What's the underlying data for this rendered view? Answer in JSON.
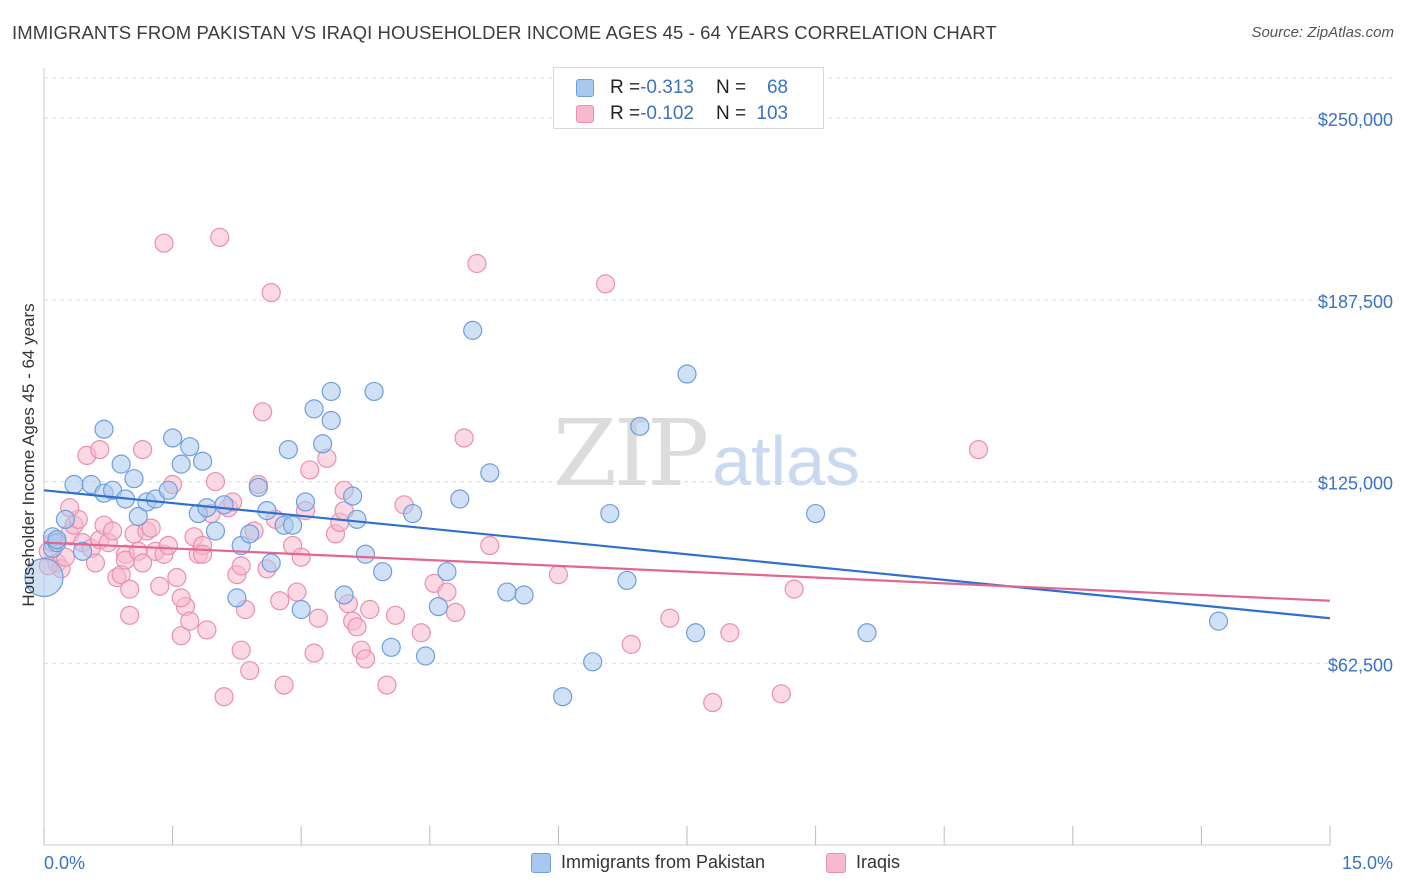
{
  "title": "IMMIGRANTS FROM PAKISTAN VS IRAQI HOUSEHOLDER INCOME AGES 45 - 64 YEARS CORRELATION CHART",
  "source": "Source: ZipAtlas.com",
  "watermark": {
    "zip": "ZIP",
    "atlas": "atlas"
  },
  "colors": {
    "pakistan_fill": "#a9c8ef",
    "pakistan_stroke": "#6d9fdc",
    "pakistan_line": "#2f6fce",
    "iraqi_fill": "#f6b9cd",
    "iraqi_stroke": "#ea8fae",
    "iraqi_line": "#e0678f",
    "axis_label": "#3a73c4",
    "grid": "#dcdcdc"
  },
  "legend_top": {
    "rows": [
      {
        "r_label": "R = ",
        "r_value": "-0.313",
        "n_label": "N = ",
        "n_value": "68"
      },
      {
        "r_label": "R = ",
        "r_value": "-0.102",
        "n_label": "N = ",
        "n_value": "103"
      }
    ]
  },
  "legend_bottom": [
    "Immigrants from Pakistan",
    "Iraqis"
  ],
  "chart_data": {
    "type": "scatter",
    "title": "IMMIGRANTS FROM PAKISTAN VS IRAQI HOUSEHOLDER INCOME AGES 45 - 64 YEARS CORRELATION CHART",
    "xlabel": "",
    "ylabel": "Householder Income Ages 45 - 64 years",
    "xlim": [
      0,
      15
    ],
    "ylim": [
      0,
      270000
    ],
    "x_tick_labels": [
      "0.0%",
      "15.0%"
    ],
    "y_ticks": [
      62500,
      125000,
      187500,
      250000
    ],
    "y_tick_labels": [
      "$62,500",
      "$125,000",
      "$187,500",
      "$250,000"
    ],
    "grid": true,
    "legend_placement": "top-center",
    "series": [
      {
        "name": "Immigrants from Pakistan",
        "r": -0.313,
        "n": 68,
        "trend": {
          "x0": 0,
          "y0": 122000,
          "x1": 15,
          "y1": 78000
        },
        "points": [
          [
            0.0,
            92000
          ],
          [
            0.1,
            102000
          ],
          [
            0.1,
            106000
          ],
          [
            0.15,
            104000
          ],
          [
            0.25,
            112000
          ],
          [
            0.35,
            124000
          ],
          [
            0.45,
            101000
          ],
          [
            0.55,
            124000
          ],
          [
            0.7,
            121000
          ],
          [
            0.7,
            143000
          ],
          [
            0.8,
            122000
          ],
          [
            0.9,
            131000
          ],
          [
            0.95,
            119000
          ],
          [
            1.05,
            126000
          ],
          [
            1.1,
            113000
          ],
          [
            1.2,
            118000
          ],
          [
            1.3,
            119000
          ],
          [
            1.45,
            122000
          ],
          [
            1.5,
            140000
          ],
          [
            1.6,
            131000
          ],
          [
            1.7,
            137000
          ],
          [
            1.8,
            114000
          ],
          [
            1.85,
            132000
          ],
          [
            1.9,
            116000
          ],
          [
            2.0,
            108000
          ],
          [
            2.1,
            117000
          ],
          [
            2.25,
            85000
          ],
          [
            2.3,
            103000
          ],
          [
            2.4,
            107000
          ],
          [
            2.5,
            123000
          ],
          [
            2.6,
            115000
          ],
          [
            2.65,
            97000
          ],
          [
            2.8,
            110000
          ],
          [
            2.85,
            136000
          ],
          [
            2.9,
            110000
          ],
          [
            3.0,
            81000
          ],
          [
            3.05,
            118000
          ],
          [
            3.15,
            150000
          ],
          [
            3.25,
            138000
          ],
          [
            3.35,
            146000
          ],
          [
            3.35,
            156000
          ],
          [
            3.5,
            86000
          ],
          [
            3.6,
            120000
          ],
          [
            3.65,
            112000
          ],
          [
            3.75,
            100000
          ],
          [
            3.85,
            156000
          ],
          [
            3.95,
            94000
          ],
          [
            4.05,
            68000
          ],
          [
            4.3,
            114000
          ],
          [
            4.45,
            65000
          ],
          [
            4.6,
            82000
          ],
          [
            4.7,
            94000
          ],
          [
            4.85,
            119000
          ],
          [
            5.0,
            177000
          ],
          [
            5.2,
            128000
          ],
          [
            5.4,
            87000
          ],
          [
            5.6,
            86000
          ],
          [
            6.05,
            51000
          ],
          [
            6.4,
            63000
          ],
          [
            6.6,
            114000
          ],
          [
            6.8,
            91000
          ],
          [
            6.95,
            144000
          ],
          [
            7.5,
            162000
          ],
          [
            7.6,
            73000
          ],
          [
            9.0,
            114000
          ],
          [
            9.6,
            73000
          ],
          [
            13.7,
            77000
          ],
          [
            0.15,
            105000
          ]
        ]
      },
      {
        "name": "Iraqis",
        "r": -0.102,
        "n": 103,
        "trend": {
          "x0": 0,
          "y0": 104000,
          "x1": 15,
          "y1": 84000
        },
        "points": [
          [
            0.05,
            101000
          ],
          [
            0.1,
            104000
          ],
          [
            0.15,
            97000
          ],
          [
            0.2,
            95000
          ],
          [
            0.25,
            99000
          ],
          [
            0.3,
            107000
          ],
          [
            0.35,
            110000
          ],
          [
            0.45,
            104000
          ],
          [
            0.5,
            134000
          ],
          [
            0.55,
            102000
          ],
          [
            0.6,
            97000
          ],
          [
            0.65,
            105000
          ],
          [
            0.7,
            110000
          ],
          [
            0.75,
            104000
          ],
          [
            0.8,
            108000
          ],
          [
            0.85,
            92000
          ],
          [
            0.9,
            93000
          ],
          [
            0.95,
            100000
          ],
          [
            0.95,
            98000
          ],
          [
            1.0,
            79000
          ],
          [
            1.05,
            107000
          ],
          [
            1.1,
            101000
          ],
          [
            1.15,
            97000
          ],
          [
            1.2,
            108000
          ],
          [
            1.25,
            109000
          ],
          [
            1.3,
            101000
          ],
          [
            1.35,
            89000
          ],
          [
            1.4,
            100000
          ],
          [
            1.45,
            103000
          ],
          [
            1.5,
            124000
          ],
          [
            1.55,
            92000
          ],
          [
            1.6,
            72000
          ],
          [
            1.65,
            82000
          ],
          [
            1.7,
            77000
          ],
          [
            1.75,
            106000
          ],
          [
            1.8,
            100000
          ],
          [
            1.85,
            103000
          ],
          [
            1.9,
            74000
          ],
          [
            1.95,
            114000
          ],
          [
            2.0,
            125000
          ],
          [
            2.05,
            209000
          ],
          [
            2.1,
            51000
          ],
          [
            2.15,
            116000
          ],
          [
            2.2,
            118000
          ],
          [
            2.25,
            93000
          ],
          [
            2.3,
            67000
          ],
          [
            2.35,
            81000
          ],
          [
            2.4,
            60000
          ],
          [
            2.45,
            108000
          ],
          [
            2.5,
            124000
          ],
          [
            2.55,
            149000
          ],
          [
            2.6,
            95000
          ],
          [
            2.65,
            190000
          ],
          [
            2.7,
            112000
          ],
          [
            2.75,
            84000
          ],
          [
            2.8,
            55000
          ],
          [
            2.9,
            103000
          ],
          [
            2.95,
            87000
          ],
          [
            3.0,
            99000
          ],
          [
            3.05,
            115000
          ],
          [
            3.1,
            129000
          ],
          [
            3.15,
            66000
          ],
          [
            3.2,
            78000
          ],
          [
            3.3,
            133000
          ],
          [
            3.4,
            107000
          ],
          [
            3.45,
            111000
          ],
          [
            3.5,
            115000
          ],
          [
            3.55,
            83000
          ],
          [
            3.6,
            77000
          ],
          [
            3.65,
            75000
          ],
          [
            3.7,
            67000
          ],
          [
            3.75,
            64000
          ],
          [
            3.8,
            81000
          ],
          [
            4.0,
            55000
          ],
          [
            4.1,
            79000
          ],
          [
            4.2,
            117000
          ],
          [
            4.4,
            73000
          ],
          [
            4.55,
            90000
          ],
          [
            4.7,
            87000
          ],
          [
            4.8,
            80000
          ],
          [
            4.9,
            140000
          ],
          [
            5.05,
            200000
          ],
          [
            5.2,
            103000
          ],
          [
            6.0,
            93000
          ],
          [
            6.55,
            193000
          ],
          [
            6.85,
            69000
          ],
          [
            7.3,
            78000
          ],
          [
            7.8,
            49000
          ],
          [
            8.0,
            73000
          ],
          [
            8.6,
            52000
          ],
          [
            8.75,
            88000
          ],
          [
            10.9,
            136000
          ],
          [
            1.4,
            207000
          ],
          [
            0.05,
            96000
          ],
          [
            0.4,
            112000
          ],
          [
            0.65,
            136000
          ],
          [
            1.0,
            88000
          ],
          [
            1.15,
            136000
          ],
          [
            1.6,
            85000
          ],
          [
            1.85,
            100000
          ],
          [
            2.3,
            96000
          ],
          [
            3.5,
            122000
          ],
          [
            0.3,
            116000
          ]
        ]
      }
    ]
  }
}
